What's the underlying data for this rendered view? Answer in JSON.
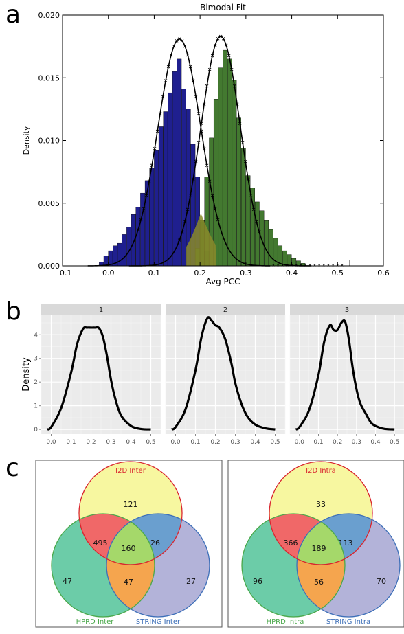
{
  "panels": {
    "a": {
      "letter": "a",
      "chart_data": {
        "type": "bar",
        "title": "Bimodal Fit",
        "xlabel": "Avg PCC",
        "ylabel": "Density",
        "xlim": [
          -0.1,
          0.6
        ],
        "ylim": [
          0,
          0.02
        ],
        "xticks": [
          "−0.1",
          "0.0",
          "0.1",
          "0.2",
          "0.3",
          "0.4",
          "0.5",
          "0.6"
        ],
        "yticks": [
          "0.000",
          "0.005",
          "0.010",
          "0.015",
          "0.020"
        ],
        "grid": false,
        "series": [
          {
            "color": "#1f1f8f",
            "x": [
              -0.02,
              -0.01,
              0.0,
              0.01,
              0.02,
              0.03,
              0.04,
              0.05,
              0.06,
              0.07,
              0.08,
              0.09,
              0.1,
              0.11,
              0.12,
              0.13,
              0.14,
              0.15,
              0.16,
              0.17,
              0.18,
              0.19,
              0.2,
              0.21
            ],
            "values": [
              0.0003,
              0.0008,
              0.0012,
              0.0016,
              0.0018,
              0.0025,
              0.0031,
              0.0041,
              0.0047,
              0.0058,
              0.0068,
              0.0078,
              0.0092,
              0.0111,
              0.0123,
              0.0138,
              0.0155,
              0.0165,
              0.0141,
              0.0125,
              0.0097,
              0.0071,
              0.0035,
              0.0012
            ]
          },
          {
            "color": "#2f6a1a",
            "x": [
              0.19,
              0.2,
              0.21,
              0.22,
              0.23,
              0.24,
              0.25,
              0.26,
              0.27,
              0.28,
              0.29,
              0.3,
              0.31,
              0.32,
              0.33,
              0.34,
              0.35,
              0.36,
              0.37,
              0.38,
              0.39,
              0.4,
              0.41,
              0.42
            ],
            "values": [
              0.0014,
              0.0036,
              0.0071,
              0.0102,
              0.0133,
              0.0158,
              0.0172,
              0.0165,
              0.0148,
              0.0118,
              0.0094,
              0.0072,
              0.0062,
              0.0051,
              0.0044,
              0.0036,
              0.0029,
              0.0022,
              0.0016,
              0.0012,
              0.0009,
              0.0006,
              0.0004,
              0.0002
            ]
          }
        ],
        "fit_curves": [
          {
            "mean": 0.155,
            "sd": 0.047,
            "peak": 0.0181
          },
          {
            "mean": 0.245,
            "sd": 0.043,
            "peak": 0.0183
          }
        ]
      }
    },
    "b": {
      "letter": "b",
      "chart_data": {
        "type": "line",
        "ylabel": "Density",
        "xlim": [
          -0.05,
          0.55
        ],
        "ylim": [
          -0.2,
          4.85
        ],
        "xticks": [
          "0.0",
          "0.1",
          "0.2",
          "0.3",
          "0.4",
          "0.5"
        ],
        "yticks": [
          "0",
          "1",
          "2",
          "3",
          "4"
        ],
        "facets": [
          {
            "strip": "1",
            "x": [
              -0.02,
              0.0,
              0.05,
              0.1,
              0.13,
              0.16,
              0.18,
              0.2,
              0.22,
              0.24,
              0.26,
              0.28,
              0.3,
              0.32,
              0.35,
              0.4,
              0.45,
              0.5
            ],
            "y": [
              0.0,
              0.1,
              0.9,
              2.4,
              3.6,
              4.25,
              4.3,
              4.3,
              4.3,
              4.28,
              3.9,
              3.1,
              2.1,
              1.35,
              0.6,
              0.15,
              0.02,
              0.0
            ]
          },
          {
            "strip": "2",
            "x": [
              -0.02,
              0.0,
              0.05,
              0.1,
              0.13,
              0.16,
              0.18,
              0.2,
              0.22,
              0.25,
              0.28,
              0.3,
              0.33,
              0.36,
              0.4,
              0.45,
              0.5
            ],
            "y": [
              0.0,
              0.1,
              0.85,
              2.5,
              3.9,
              4.7,
              4.6,
              4.4,
              4.3,
              3.8,
              2.8,
              1.95,
              1.1,
              0.55,
              0.2,
              0.05,
              0.0
            ]
          },
          {
            "strip": "3",
            "x": [
              -0.02,
              0.0,
              0.05,
              0.1,
              0.13,
              0.16,
              0.18,
              0.2,
              0.22,
              0.24,
              0.26,
              0.28,
              0.3,
              0.32,
              0.35,
              0.38,
              0.42,
              0.45,
              0.5
            ],
            "y": [
              0.0,
              0.1,
              0.8,
              2.3,
              3.7,
              4.4,
              4.2,
              4.2,
              4.5,
              4.55,
              3.8,
              2.6,
              1.7,
              1.1,
              0.65,
              0.25,
              0.08,
              0.02,
              0.0
            ]
          }
        ]
      }
    },
    "c": {
      "letter": "c",
      "venns": [
        {
          "set_labels": [
            "I2D Inter",
            "HPRD Inter",
            "STRING Inter"
          ],
          "regions": {
            "i2d_only": "121",
            "i2d_hprd": "495",
            "i2d_string": "26",
            "all": "160",
            "hprd_only": "47",
            "hprd_string": "47",
            "string_only": "27"
          }
        },
        {
          "set_labels": [
            "I2D Intra",
            "HPRD Intra",
            "STRING Intra"
          ],
          "regions": {
            "i2d_only": "33",
            "i2d_hprd": "366",
            "i2d_string": "113",
            "all": "189",
            "hprd_only": "96",
            "hprd_string": "56",
            "string_only": "70"
          }
        }
      ],
      "colors": {
        "i2d_only": "#f7f7a0",
        "i2d_hprd": "#f06868",
        "i2d_string": "#6a9fcf",
        "all": "#a5d86a",
        "hprd_only": "#6ccca8",
        "hprd_string": "#f5a54e",
        "string_only": "#b3b3d9",
        "i2d_stroke": "#d9242d",
        "hprd_stroke": "#4aa84a",
        "string_stroke": "#3d6fb8"
      }
    }
  }
}
